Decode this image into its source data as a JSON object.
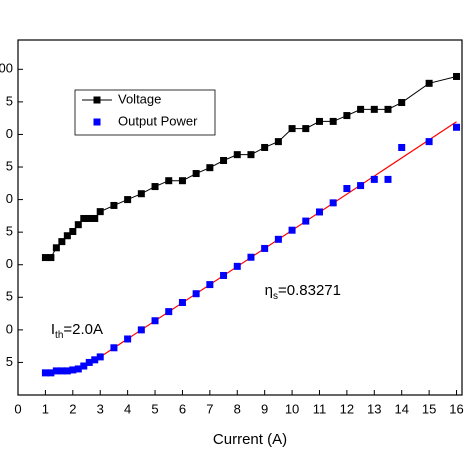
{
  "chart_data": {
    "type": "line",
    "x_label": "Current (A)",
    "xlim": [
      0,
      16.2
    ],
    "xticks": [
      0,
      1,
      2,
      3,
      4,
      5,
      6,
      7,
      8,
      9,
      10,
      11,
      12,
      13,
      14,
      15,
      16
    ],
    "ylim": [
      0,
      10.9
    ],
    "yticks": [
      {
        "value": 1,
        "label": "5"
      },
      {
        "value": 2,
        "label": "0"
      },
      {
        "value": 3,
        "label": "5"
      },
      {
        "value": 4,
        "label": "0"
      },
      {
        "value": 5,
        "label": "5"
      },
      {
        "value": 6,
        "label": "0"
      },
      {
        "value": 7,
        "label": "5"
      },
      {
        "value": 8,
        "label": "0"
      },
      {
        "value": 9,
        "label": "5"
      },
      {
        "value": 10,
        "label": "00"
      }
    ],
    "legend": "upper left",
    "series": [
      {
        "name": "Voltage",
        "color": "#000000",
        "marker": "square",
        "connect": true,
        "x": [
          1,
          1.2,
          1.4,
          1.6,
          1.8,
          2,
          2.2,
          2.4,
          2.6,
          2.8,
          3,
          3.5,
          4,
          4.5,
          5,
          5.5,
          6,
          6.5,
          7,
          7.5,
          8,
          8.5,
          9,
          9.5,
          10,
          10.5,
          11,
          11.5,
          12,
          12.5,
          13,
          13.5,
          14,
          15,
          16
        ],
        "values": [
          4.22,
          4.22,
          4.52,
          4.71,
          4.89,
          5.02,
          5.23,
          5.42,
          5.42,
          5.42,
          5.63,
          5.82,
          6.0,
          6.18,
          6.4,
          6.58,
          6.58,
          6.8,
          6.98,
          7.2,
          7.38,
          7.38,
          7.6,
          7.78,
          8.18,
          8.18,
          8.4,
          8.4,
          8.58,
          8.77,
          8.77,
          8.77,
          8.98,
          9.57,
          9.78
        ]
      },
      {
        "name": "Output Power",
        "color": "#0000ff",
        "marker": "square",
        "connect": false,
        "x": [
          1,
          1.2,
          1.4,
          1.6,
          1.8,
          2,
          2.2,
          2.4,
          2.6,
          2.8,
          3,
          3.5,
          4,
          4.5,
          5,
          5.5,
          6,
          6.5,
          7,
          7.5,
          8,
          8.5,
          9,
          9.5,
          10,
          10.5,
          11,
          11.5,
          12,
          12.5,
          13,
          13.5,
          14,
          15,
          16
        ],
        "values": [
          0.68,
          0.68,
          0.74,
          0.74,
          0.74,
          0.77,
          0.8,
          0.89,
          1.0,
          1.08,
          1.17,
          1.45,
          1.72,
          2.0,
          2.28,
          2.56,
          2.84,
          3.11,
          3.39,
          3.67,
          3.95,
          4.23,
          4.5,
          4.78,
          5.06,
          5.34,
          5.62,
          5.9,
          6.34,
          6.43,
          6.62,
          6.62,
          7.6,
          7.78,
          8.22
        ]
      }
    ],
    "fit_line": {
      "color": "#ff0000",
      "x": [
        2.5,
        16
      ],
      "values": [
        0.89,
        8.39
      ]
    },
    "annotations": [
      {
        "main": "η",
        "sub": "s",
        "rest": "=0.83271",
        "x": 9.0,
        "y": 3.2
      },
      {
        "main": "I",
        "sub": "th",
        "rest": "=2.0A",
        "x": 1.2,
        "y": 2.0
      }
    ]
  }
}
